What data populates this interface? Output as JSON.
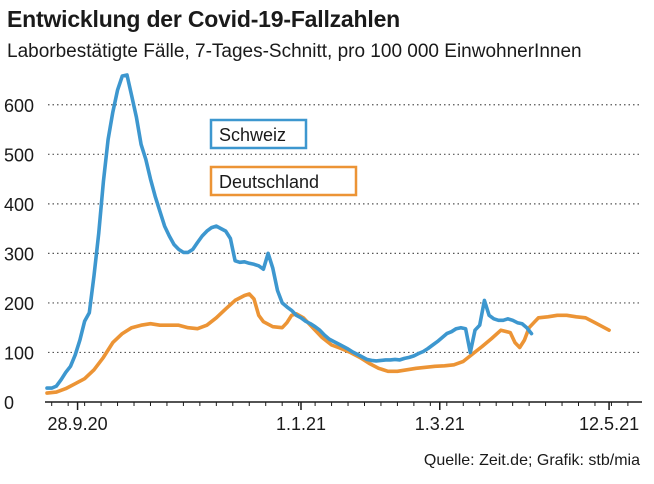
{
  "chart_data": {
    "type": "line",
    "title": "Entwicklung der Covid-19-Fallzahlen",
    "subtitle": "Laborbestätigte Fälle, 7-Tages-Schnitt, pro 100 000 EinwohnerInnen",
    "source": "Quelle: Zeit.de; Grafik: stb/mia",
    "xlabel": "",
    "ylabel": "",
    "ylim": [
      0,
      650
    ],
    "yticks": [
      0,
      100,
      200,
      300,
      400,
      500,
      600
    ],
    "xlim": [
      "2020-09-15",
      "2021-05-26"
    ],
    "xticks": [
      {
        "date": "2020-09-28",
        "label": "28.9.20"
      },
      {
        "date": "2021-01-01",
        "label": "1.1.21"
      },
      {
        "date": "2021-03-01",
        "label": "1.3.21"
      },
      {
        "date": "2021-05-12",
        "label": "12.5.21"
      }
    ],
    "grid": true,
    "legend": "inline",
    "series": [
      {
        "name": "Schweiz",
        "color": "#3d97cf",
        "points": [
          [
            "2020-09-15",
            28
          ],
          [
            "2020-09-17",
            28
          ],
          [
            "2020-09-19",
            32
          ],
          [
            "2020-09-21",
            45
          ],
          [
            "2020-09-23",
            60
          ],
          [
            "2020-09-25",
            72
          ],
          [
            "2020-09-27",
            95
          ],
          [
            "2020-09-29",
            125
          ],
          [
            "2020-10-01",
            163
          ],
          [
            "2020-10-03",
            180
          ],
          [
            "2020-10-05",
            255
          ],
          [
            "2020-10-07",
            340
          ],
          [
            "2020-10-09",
            445
          ],
          [
            "2020-10-11",
            530
          ],
          [
            "2020-10-13",
            585
          ],
          [
            "2020-10-15",
            630
          ],
          [
            "2020-10-17",
            658
          ],
          [
            "2020-10-19",
            660
          ],
          [
            "2020-10-21",
            618
          ],
          [
            "2020-10-23",
            575
          ],
          [
            "2020-10-25",
            520
          ],
          [
            "2020-10-27",
            490
          ],
          [
            "2020-10-29",
            450
          ],
          [
            "2020-10-31",
            415
          ],
          [
            "2020-11-02",
            385
          ],
          [
            "2020-11-04",
            355
          ],
          [
            "2020-11-06",
            335
          ],
          [
            "2020-11-08",
            318
          ],
          [
            "2020-11-10",
            308
          ],
          [
            "2020-11-12",
            302
          ],
          [
            "2020-11-14",
            302
          ],
          [
            "2020-11-16",
            308
          ],
          [
            "2020-11-18",
            322
          ],
          [
            "2020-11-20",
            335
          ],
          [
            "2020-11-22",
            345
          ],
          [
            "2020-11-24",
            352
          ],
          [
            "2020-11-26",
            355
          ],
          [
            "2020-11-28",
            350
          ],
          [
            "2020-11-30",
            345
          ],
          [
            "2020-12-02",
            330
          ],
          [
            "2020-12-04",
            285
          ],
          [
            "2020-12-06",
            282
          ],
          [
            "2020-12-08",
            283
          ],
          [
            "2020-12-10",
            280
          ],
          [
            "2020-12-12",
            278
          ],
          [
            "2020-12-14",
            275
          ],
          [
            "2020-12-16",
            268
          ],
          [
            "2020-12-18",
            300
          ],
          [
            "2020-12-20",
            270
          ],
          [
            "2020-12-22",
            225
          ],
          [
            "2020-12-24",
            200
          ],
          [
            "2020-12-26",
            192
          ],
          [
            "2020-12-28",
            185
          ],
          [
            "2020-12-30",
            175
          ],
          [
            "2021-01-01",
            170
          ],
          [
            "2021-01-03",
            163
          ],
          [
            "2021-01-05",
            158
          ],
          [
            "2021-01-07",
            152
          ],
          [
            "2021-01-09",
            145
          ],
          [
            "2021-01-11",
            135
          ],
          [
            "2021-01-13",
            127
          ],
          [
            "2021-01-15",
            122
          ],
          [
            "2021-01-17",
            117
          ],
          [
            "2021-01-19",
            112
          ],
          [
            "2021-01-21",
            107
          ],
          [
            "2021-01-23",
            101
          ],
          [
            "2021-01-25",
            96
          ],
          [
            "2021-01-27",
            91
          ],
          [
            "2021-01-29",
            86
          ],
          [
            "2021-01-31",
            84
          ],
          [
            "2021-02-02",
            83
          ],
          [
            "2021-02-04",
            84
          ],
          [
            "2021-02-06",
            85
          ],
          [
            "2021-02-08",
            85
          ],
          [
            "2021-02-10",
            86
          ],
          [
            "2021-02-12",
            85
          ],
          [
            "2021-02-14",
            88
          ],
          [
            "2021-02-16",
            90
          ],
          [
            "2021-02-18",
            93
          ],
          [
            "2021-02-20",
            98
          ],
          [
            "2021-02-22",
            102
          ],
          [
            "2021-02-24",
            108
          ],
          [
            "2021-02-26",
            115
          ],
          [
            "2021-02-28",
            122
          ],
          [
            "2021-03-02",
            130
          ],
          [
            "2021-03-04",
            138
          ],
          [
            "2021-03-06",
            142
          ],
          [
            "2021-03-08",
            148
          ],
          [
            "2021-03-10",
            150
          ],
          [
            "2021-03-12",
            148
          ],
          [
            "2021-03-14",
            100
          ],
          [
            "2021-03-16",
            145
          ],
          [
            "2021-03-18",
            155
          ],
          [
            "2021-03-20",
            205
          ],
          [
            "2021-03-22",
            175
          ],
          [
            "2021-03-24",
            168
          ],
          [
            "2021-03-26",
            165
          ],
          [
            "2021-03-28",
            165
          ],
          [
            "2021-03-30",
            168
          ],
          [
            "2021-04-01",
            165
          ],
          [
            "2021-04-03",
            160
          ],
          [
            "2021-04-05",
            158
          ],
          [
            "2021-04-07",
            150
          ],
          [
            "2021-04-09",
            138
          ]
        ]
      },
      {
        "name": "Deutschland",
        "color": "#ec9435",
        "points": [
          [
            "2020-09-15",
            18
          ],
          [
            "2020-09-19",
            20
          ],
          [
            "2020-09-23",
            27
          ],
          [
            "2020-09-27",
            37
          ],
          [
            "2020-10-01",
            47
          ],
          [
            "2020-10-05",
            65
          ],
          [
            "2020-10-09",
            90
          ],
          [
            "2020-10-13",
            120
          ],
          [
            "2020-10-17",
            138
          ],
          [
            "2020-10-21",
            150
          ],
          [
            "2020-10-25",
            155
          ],
          [
            "2020-10-29",
            158
          ],
          [
            "2020-11-02",
            155
          ],
          [
            "2020-11-06",
            155
          ],
          [
            "2020-11-10",
            155
          ],
          [
            "2020-11-14",
            150
          ],
          [
            "2020-11-18",
            148
          ],
          [
            "2020-11-22",
            155
          ],
          [
            "2020-11-26",
            170
          ],
          [
            "2020-11-30",
            188
          ],
          [
            "2020-12-04",
            205
          ],
          [
            "2020-12-08",
            215
          ],
          [
            "2020-12-10",
            218
          ],
          [
            "2020-12-12",
            208
          ],
          [
            "2020-12-14",
            175
          ],
          [
            "2020-12-16",
            162
          ],
          [
            "2020-12-20",
            152
          ],
          [
            "2020-12-24",
            150
          ],
          [
            "2020-12-26",
            160
          ],
          [
            "2020-12-28",
            175
          ],
          [
            "2020-12-30",
            178
          ],
          [
            "2021-01-02",
            170
          ],
          [
            "2021-01-06",
            150
          ],
          [
            "2021-01-10",
            130
          ],
          [
            "2021-01-14",
            115
          ],
          [
            "2021-01-18",
            108
          ],
          [
            "2021-01-22",
            100
          ],
          [
            "2021-01-26",
            90
          ],
          [
            "2021-01-30",
            78
          ],
          [
            "2021-02-03",
            68
          ],
          [
            "2021-02-07",
            62
          ],
          [
            "2021-02-11",
            62
          ],
          [
            "2021-02-15",
            65
          ],
          [
            "2021-02-19",
            68
          ],
          [
            "2021-02-23",
            70
          ],
          [
            "2021-02-27",
            72
          ],
          [
            "2021-03-03",
            73
          ],
          [
            "2021-03-07",
            75
          ],
          [
            "2021-03-11",
            82
          ],
          [
            "2021-03-15",
            97
          ],
          [
            "2021-03-19",
            112
          ],
          [
            "2021-03-23",
            128
          ],
          [
            "2021-03-27",
            145
          ],
          [
            "2021-03-31",
            140
          ],
          [
            "2021-04-02",
            120
          ],
          [
            "2021-04-04",
            110
          ],
          [
            "2021-04-06",
            125
          ],
          [
            "2021-04-08",
            150
          ],
          [
            "2021-04-10",
            160
          ],
          [
            "2021-04-12",
            170
          ],
          [
            "2021-04-16",
            172
          ],
          [
            "2021-04-20",
            175
          ],
          [
            "2021-04-24",
            175
          ],
          [
            "2021-04-28",
            172
          ],
          [
            "2021-05-02",
            170
          ],
          [
            "2021-05-06",
            160
          ],
          [
            "2021-05-10",
            150
          ],
          [
            "2021-05-12",
            145
          ]
        ]
      }
    ]
  }
}
